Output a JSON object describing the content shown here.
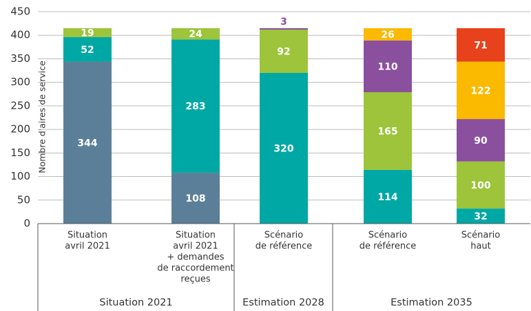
{
  "chart_data": {
    "type": "stacked-bar",
    "y_label": "Nombre d'aires de service",
    "categories": [
      [
        "Situation",
        "avril 2021"
      ],
      [
        "Situation",
        "avril 2021",
        "+ demandes",
        "de raccordement",
        "reçues"
      ],
      [
        "Scénario",
        "de référence"
      ],
      [
        "Scénario",
        "de référence"
      ],
      [
        "Scénario",
        "haut"
      ]
    ],
    "groups": [
      {
        "label": "Situation 2021",
        "count": 2
      },
      {
        "label": "Estimation 2028",
        "count": 1
      },
      {
        "label": "Estimation 2035",
        "count": 2
      }
    ],
    "series": [
      {
        "color": "#5b7f99",
        "values": [
          344,
          108,
          null,
          null,
          null
        ]
      },
      {
        "color": "#00a8a5",
        "values": [
          52,
          283,
          320,
          114,
          32
        ]
      },
      {
        "color": "#9dc43a",
        "values": [
          19,
          24,
          92,
          165,
          100
        ]
      },
      {
        "color": "#8a509e",
        "values": [
          null,
          null,
          3,
          110,
          90
        ]
      },
      {
        "color": "#fbb900",
        "values": [
          null,
          null,
          null,
          26,
          122
        ]
      },
      {
        "color": "#e8421c",
        "values": [
          null,
          null,
          null,
          null,
          71
        ]
      }
    ],
    "ylim": [
      0,
      450
    ],
    "yticks": [
      0,
      50,
      100,
      150,
      200,
      250,
      300,
      350,
      400,
      450
    ],
    "grid": true
  }
}
